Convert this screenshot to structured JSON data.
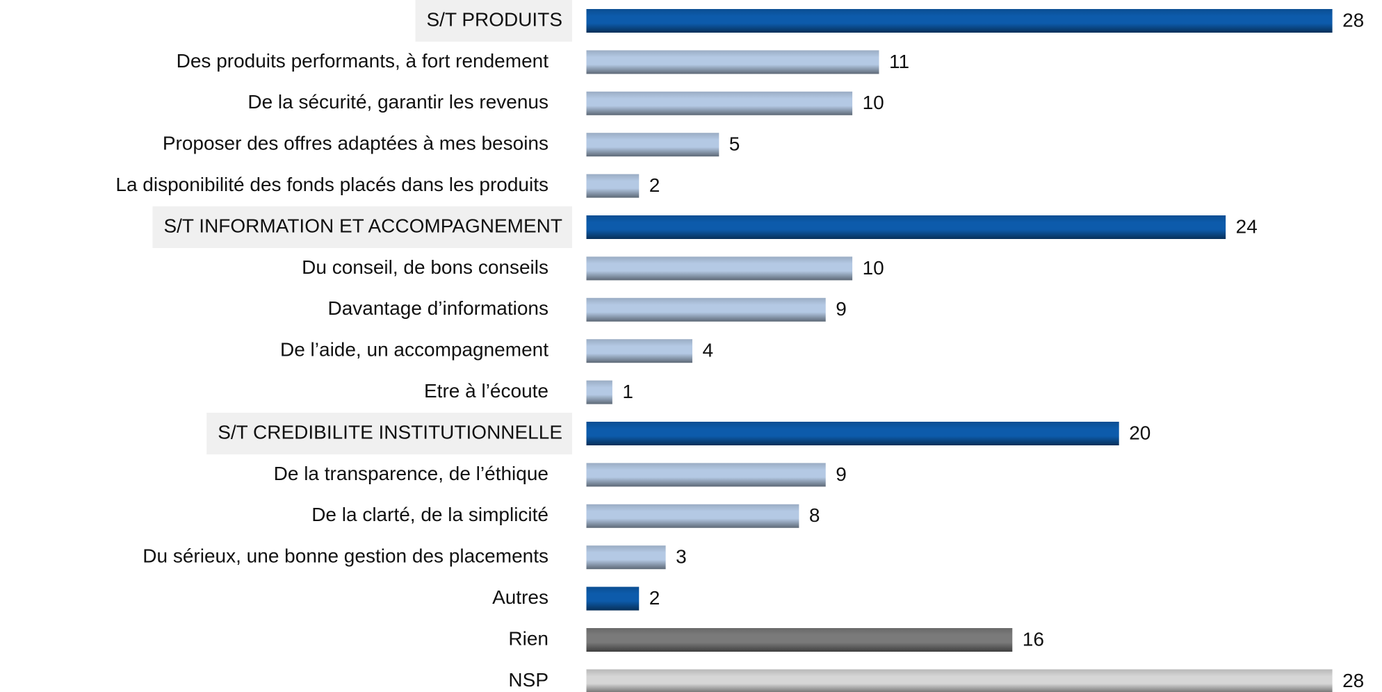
{
  "chart_data": {
    "type": "bar",
    "orientation": "horizontal",
    "categories": [
      "S/T  PRODUITS",
      "Des produits performants, à fort rendement",
      "De la sécurité, garantir les revenus",
      "Proposer des offres adaptées à mes besoins",
      "La disponibilité des fonds placés dans les produits",
      "S/T INFORMATION ET ACCOMPAGNEMENT",
      "Du conseil, de bons conseils",
      "Davantage d’informations",
      "De l’aide, un accompagnement",
      "Etre à l’écoute",
      "S/T CREDIBILITE INSTITUTIONNELLE",
      "De la transparence, de l’éthique",
      "De la clarté, de la simplicité",
      "Du sérieux, une bonne gestion des placements",
      "Autres",
      "Rien",
      "NSP"
    ],
    "values": [
      28,
      11,
      10,
      5,
      2,
      24,
      10,
      9,
      4,
      1,
      20,
      9,
      8,
      3,
      2,
      16,
      28
    ],
    "colors": [
      "#0d5bab",
      "#b4c9e4",
      "#b4c9e4",
      "#b4c9e4",
      "#b4c9e4",
      "#0d5bab",
      "#b4c9e4",
      "#b4c9e4",
      "#b4c9e4",
      "#b4c9e4",
      "#0d5bab",
      "#b4c9e4",
      "#b4c9e4",
      "#b4c9e4",
      "#0d5bab",
      "#7a7a7a",
      "#d6d6d6"
    ],
    "label_backgrounds": [
      "#f0f0f0",
      null,
      null,
      null,
      null,
      "#f0f0f0",
      null,
      null,
      null,
      null,
      "#f0f0f0",
      null,
      null,
      null,
      null,
      null,
      null
    ]
  }
}
